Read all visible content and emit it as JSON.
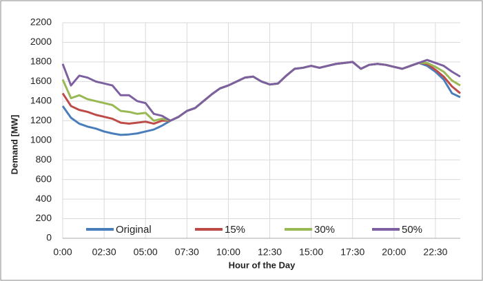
{
  "chart_data": {
    "type": "line",
    "xlabel": "Hour of the Day",
    "ylabel": "Demand  [MW]",
    "x": [
      0,
      0.5,
      1,
      1.5,
      2,
      2.5,
      3,
      3.5,
      4,
      4.5,
      5,
      5.5,
      6,
      6.5,
      7,
      7.5,
      8,
      8.5,
      9,
      9.5,
      10,
      10.5,
      11,
      11.5,
      12,
      12.5,
      13,
      13.5,
      14,
      14.5,
      15,
      15.5,
      16,
      16.5,
      17,
      17.5,
      18,
      18.5,
      19,
      19.5,
      20,
      20.5,
      21,
      21.5,
      22,
      22.5,
      23,
      23.5,
      24
    ],
    "series": [
      {
        "name": "Original",
        "color": "#4a7ebb",
        "values": [
          1350,
          1230,
          1170,
          1140,
          1120,
          1090,
          1070,
          1055,
          1060,
          1070,
          1090,
          1110,
          1150,
          1200,
          1240,
          1300,
          1330,
          1400,
          1470,
          1530,
          1560,
          1600,
          1640,
          1650,
          1600,
          1570,
          1580,
          1660,
          1730,
          1740,
          1760,
          1740,
          1760,
          1780,
          1790,
          1800,
          1730,
          1770,
          1780,
          1770,
          1750,
          1730,
          1760,
          1790,
          1760,
          1700,
          1620,
          1480,
          1440
        ]
      },
      {
        "name": "15%",
        "color": "#be4b48",
        "values": [
          1480,
          1350,
          1310,
          1290,
          1260,
          1240,
          1220,
          1180,
          1170,
          1180,
          1190,
          1170,
          1200,
          1200,
          1240,
          1300,
          1330,
          1400,
          1470,
          1530,
          1560,
          1600,
          1640,
          1650,
          1600,
          1570,
          1580,
          1660,
          1730,
          1740,
          1760,
          1740,
          1760,
          1780,
          1790,
          1800,
          1730,
          1770,
          1780,
          1770,
          1750,
          1730,
          1760,
          1790,
          1780,
          1720,
          1650,
          1550,
          1480
        ]
      },
      {
        "name": "30%",
        "color": "#98b954",
        "values": [
          1620,
          1430,
          1460,
          1420,
          1400,
          1380,
          1360,
          1300,
          1290,
          1270,
          1280,
          1200,
          1220,
          1200,
          1240,
          1300,
          1330,
          1400,
          1470,
          1530,
          1560,
          1600,
          1640,
          1650,
          1600,
          1570,
          1580,
          1660,
          1730,
          1740,
          1760,
          1740,
          1760,
          1780,
          1790,
          1800,
          1730,
          1770,
          1780,
          1770,
          1750,
          1730,
          1760,
          1790,
          1790,
          1750,
          1700,
          1610,
          1560
        ]
      },
      {
        "name": "50%",
        "color": "#7d60a0",
        "values": [
          1780,
          1560,
          1660,
          1640,
          1600,
          1580,
          1560,
          1460,
          1460,
          1400,
          1380,
          1270,
          1250,
          1200,
          1240,
          1300,
          1330,
          1400,
          1470,
          1530,
          1560,
          1600,
          1640,
          1650,
          1600,
          1570,
          1580,
          1660,
          1730,
          1740,
          1760,
          1740,
          1760,
          1780,
          1790,
          1800,
          1730,
          1770,
          1780,
          1770,
          1750,
          1730,
          1760,
          1790,
          1820,
          1790,
          1760,
          1700,
          1650
        ]
      }
    ],
    "xlim": [
      0,
      24
    ],
    "ylim": [
      0,
      2200
    ],
    "xticks": [
      {
        "value": 0,
        "label": "0:00"
      },
      {
        "value": 2.5,
        "label": "02:30"
      },
      {
        "value": 5,
        "label": "05:00"
      },
      {
        "value": 7.5,
        "label": "07:30"
      },
      {
        "value": 10,
        "label": "10:00"
      },
      {
        "value": 12.5,
        "label": "12:30"
      },
      {
        "value": 15,
        "label": "15:00"
      },
      {
        "value": 17.5,
        "label": "17:30"
      },
      {
        "value": 20,
        "label": "20:00"
      },
      {
        "value": 22.5,
        "label": "22:30"
      }
    ],
    "yticks": [
      0,
      200,
      400,
      600,
      800,
      1000,
      1200,
      1400,
      1600,
      1800,
      2000,
      2200
    ],
    "grid": true
  }
}
